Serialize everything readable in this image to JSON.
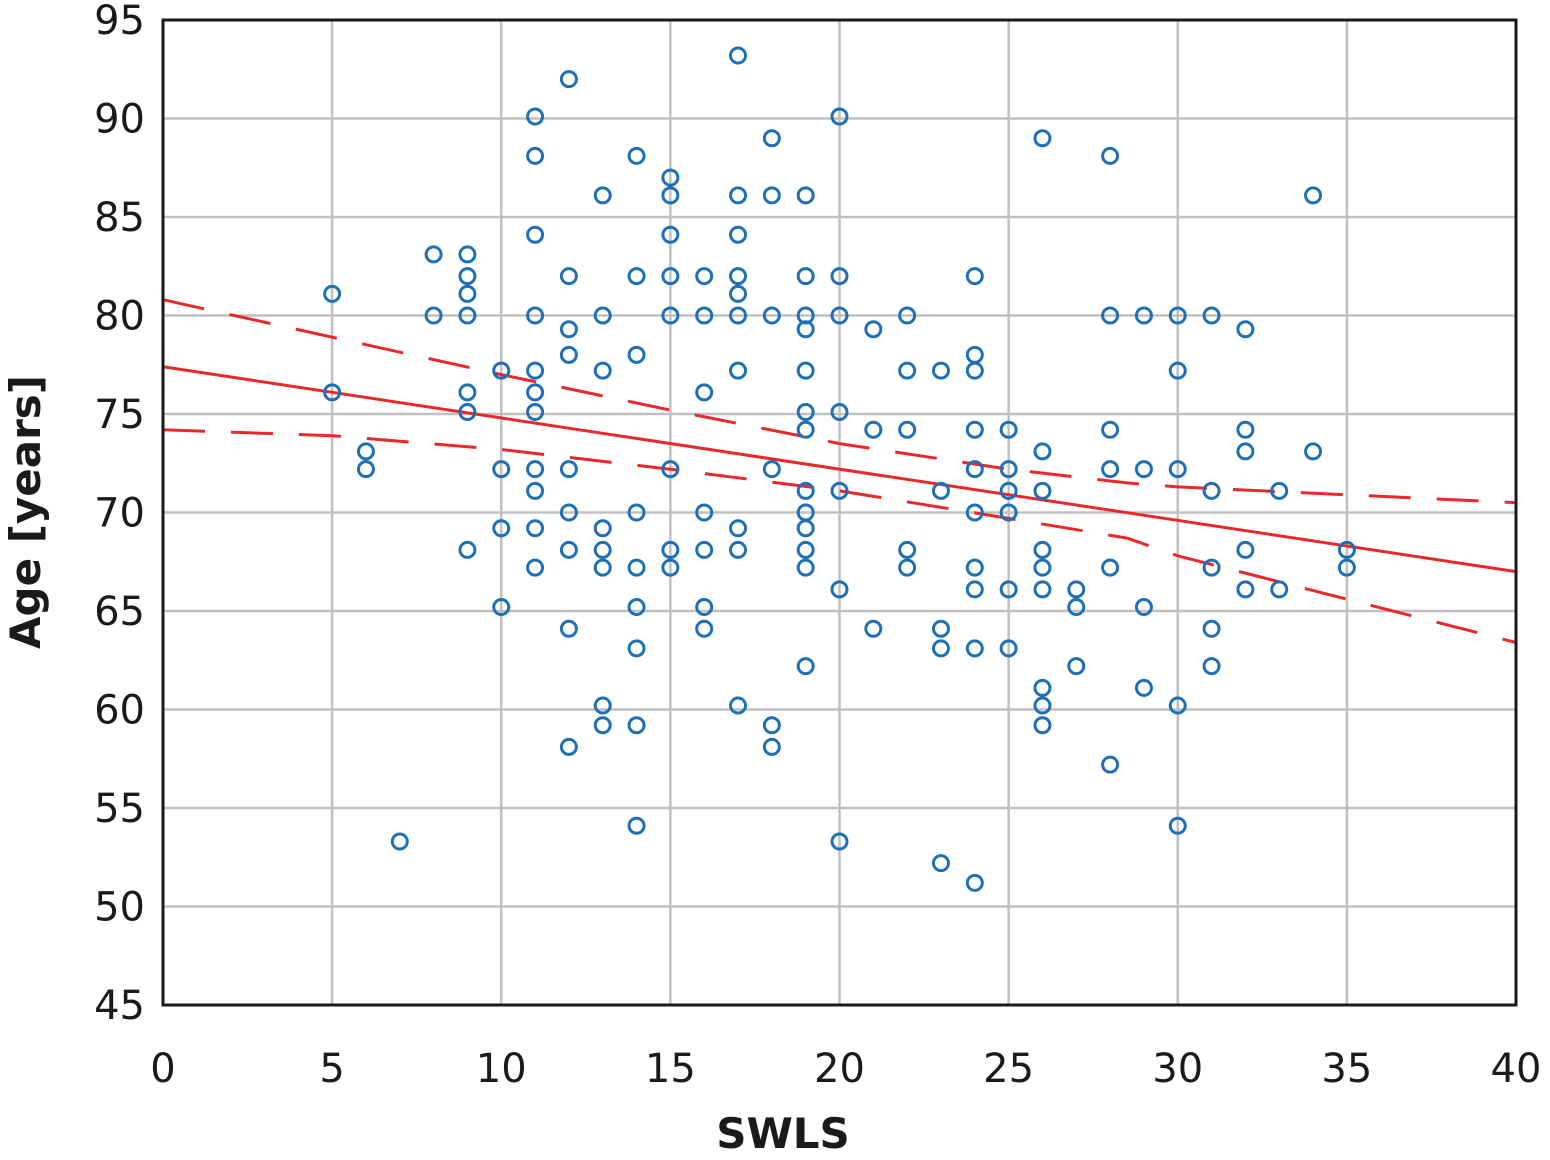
{
  "chart_data": {
    "type": "scatter",
    "xlabel": "SWLS",
    "ylabel": "Age [years]",
    "xlim": [
      0,
      40
    ],
    "ylim": [
      45,
      95
    ],
    "xticks": [
      0,
      5,
      10,
      15,
      20,
      25,
      30,
      35,
      40
    ],
    "yticks": [
      45,
      50,
      55,
      60,
      65,
      70,
      75,
      80,
      85,
      90,
      95
    ],
    "grid": true,
    "legend": "none",
    "colors": {
      "points": "#1f6fb5",
      "fit": "#e8282b",
      "grid": "#c0c0c0",
      "frame": "#1a1a1a"
    },
    "points": [
      [
        5,
        81.1
      ],
      [
        5,
        76.1
      ],
      [
        6,
        73.1
      ],
      [
        6,
        72.2
      ],
      [
        7,
        53.3
      ],
      [
        8,
        83.1
      ],
      [
        8,
        80
      ],
      [
        9,
        83.1
      ],
      [
        9,
        82
      ],
      [
        9,
        81.1
      ],
      [
        9,
        80
      ],
      [
        9,
        76.1
      ],
      [
        9,
        75.1
      ],
      [
        9,
        68.1
      ],
      [
        10,
        77.2
      ],
      [
        10,
        72.2
      ],
      [
        10,
        69.2
      ],
      [
        10,
        65.2
      ],
      [
        11,
        90.1
      ],
      [
        11,
        88.1
      ],
      [
        11,
        84.1
      ],
      [
        11,
        80
      ],
      [
        11,
        77.2
      ],
      [
        11,
        76.1
      ],
      [
        11,
        75.1
      ],
      [
        11,
        72.2
      ],
      [
        11,
        71.1
      ],
      [
        11,
        69.2
      ],
      [
        11,
        67.2
      ],
      [
        12,
        92
      ],
      [
        12,
        82
      ],
      [
        12,
        79.3
      ],
      [
        12,
        78
      ],
      [
        12,
        72.2
      ],
      [
        12,
        70
      ],
      [
        12,
        68.1
      ],
      [
        12,
        64.1
      ],
      [
        12,
        58.1
      ],
      [
        13,
        86.1
      ],
      [
        13,
        80
      ],
      [
        13,
        77.2
      ],
      [
        13,
        69.2
      ],
      [
        13,
        68.1
      ],
      [
        13,
        67.2
      ],
      [
        13,
        60.2
      ],
      [
        13,
        59.2
      ],
      [
        14,
        88.1
      ],
      [
        14,
        82
      ],
      [
        14,
        78
      ],
      [
        14,
        70
      ],
      [
        14,
        67.2
      ],
      [
        14,
        65.2
      ],
      [
        14,
        63.1
      ],
      [
        14,
        59.2
      ],
      [
        14,
        54.1
      ],
      [
        15,
        87
      ],
      [
        15,
        86.1
      ],
      [
        15,
        84.1
      ],
      [
        15,
        82
      ],
      [
        15,
        80
      ],
      [
        15,
        72.2
      ],
      [
        15,
        68.1
      ],
      [
        15,
        67.2
      ],
      [
        16,
        82
      ],
      [
        16,
        80
      ],
      [
        16,
        76.1
      ],
      [
        16,
        70
      ],
      [
        16,
        68.1
      ],
      [
        16,
        65.2
      ],
      [
        16,
        64.1
      ],
      [
        17,
        93.2
      ],
      [
        17,
        86.1
      ],
      [
        17,
        84.1
      ],
      [
        17,
        82
      ],
      [
        17,
        81.1
      ],
      [
        17,
        80
      ],
      [
        17,
        77.2
      ],
      [
        17,
        69.2
      ],
      [
        17,
        68.1
      ],
      [
        17,
        60.2
      ],
      [
        18,
        89
      ],
      [
        18,
        86.1
      ],
      [
        18,
        80
      ],
      [
        18,
        72.2
      ],
      [
        18,
        59.2
      ],
      [
        18,
        58.1
      ],
      [
        19,
        86.1
      ],
      [
        19,
        82
      ],
      [
        19,
        80
      ],
      [
        19,
        79.3
      ],
      [
        19,
        77.2
      ],
      [
        19,
        75.1
      ],
      [
        19,
        74.2
      ],
      [
        19,
        71.1
      ],
      [
        19,
        70
      ],
      [
        19,
        69.2
      ],
      [
        19,
        68.1
      ],
      [
        19,
        67.2
      ],
      [
        19,
        62.2
      ],
      [
        20,
        90.1
      ],
      [
        20,
        82
      ],
      [
        20,
        80
      ],
      [
        20,
        75.1
      ],
      [
        20,
        71.1
      ],
      [
        20,
        66.1
      ],
      [
        20,
        53.3
      ],
      [
        21,
        79.3
      ],
      [
        21,
        74.2
      ],
      [
        21,
        64.1
      ],
      [
        22,
        80
      ],
      [
        22,
        77.2
      ],
      [
        22,
        74.2
      ],
      [
        22,
        68.1
      ],
      [
        22,
        67.2
      ],
      [
        23,
        77.2
      ],
      [
        23,
        71.1
      ],
      [
        23,
        64.1
      ],
      [
        23,
        63.1
      ],
      [
        23,
        52.2
      ],
      [
        24,
        82
      ],
      [
        24,
        78
      ],
      [
        24,
        77.2
      ],
      [
        24,
        74.2
      ],
      [
        24,
        72.2
      ],
      [
        24,
        70
      ],
      [
        24,
        67.2
      ],
      [
        24,
        66.1
      ],
      [
        24,
        63.1
      ],
      [
        24,
        51.2
      ],
      [
        25,
        74.2
      ],
      [
        25,
        72.2
      ],
      [
        25,
        71.1
      ],
      [
        25,
        70
      ],
      [
        25,
        66.1
      ],
      [
        25,
        63.1
      ],
      [
        26,
        89
      ],
      [
        26,
        73.1
      ],
      [
        26,
        71.1
      ],
      [
        26,
        68.1
      ],
      [
        26,
        67.2
      ],
      [
        26,
        66.1
      ],
      [
        26,
        61.1
      ],
      [
        26,
        60.2
      ],
      [
        26,
        59.2
      ],
      [
        27,
        66.1
      ],
      [
        27,
        65.2
      ],
      [
        27,
        62.2
      ],
      [
        28,
        88.1
      ],
      [
        28,
        80
      ],
      [
        28,
        74.2
      ],
      [
        28,
        72.2
      ],
      [
        28,
        67.2
      ],
      [
        28,
        57.2
      ],
      [
        29,
        80
      ],
      [
        29,
        72.2
      ],
      [
        29,
        65.2
      ],
      [
        29,
        61.1
      ],
      [
        30,
        80
      ],
      [
        30,
        77.2
      ],
      [
        30,
        72.2
      ],
      [
        30,
        60.2
      ],
      [
        30,
        54.1
      ],
      [
        31,
        80
      ],
      [
        31,
        71.1
      ],
      [
        31,
        67.2
      ],
      [
        31,
        64.1
      ],
      [
        31,
        62.2
      ],
      [
        32,
        79.3
      ],
      [
        32,
        74.2
      ],
      [
        32,
        73.1
      ],
      [
        32,
        68.1
      ],
      [
        32,
        66.1
      ],
      [
        33,
        71.1
      ],
      [
        33,
        66.1
      ],
      [
        34,
        86.1
      ],
      [
        34,
        73.1
      ],
      [
        35,
        68.1
      ],
      [
        35,
        67.2
      ]
    ],
    "fit_line": {
      "x": [
        0,
        40
      ],
      "y": [
        77.4,
        67.0
      ]
    },
    "confidence_band": {
      "upper": {
        "x": [
          0,
          5,
          10,
          15,
          20,
          25,
          28.5,
          30,
          35,
          40
        ],
        "y": [
          80.8,
          78.9,
          77.0,
          75.2,
          73.5,
          72.2,
          71.5,
          71.3,
          70.9,
          70.5
        ]
      },
      "lower": {
        "x": [
          0,
          5,
          10,
          15,
          20,
          25,
          28.5,
          30,
          35,
          40
        ],
        "y": [
          74.2,
          73.9,
          73.2,
          72.2,
          71.1,
          69.7,
          68.7,
          67.8,
          65.6,
          63.4
        ]
      }
    }
  }
}
